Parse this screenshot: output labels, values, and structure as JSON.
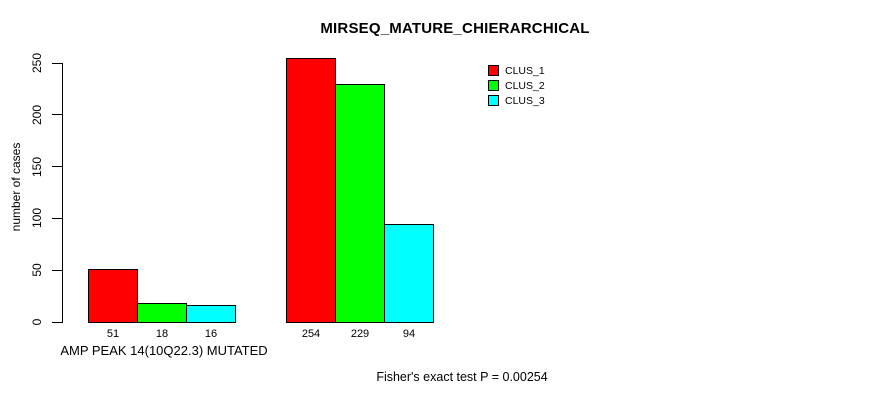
{
  "chart_data": {
    "type": "bar",
    "title": "MIRSEQ_MATURE_CHIERARCHICAL",
    "ylabel": "number of cases",
    "xlabel": "AMP PEAK 14(10Q22.3) MUTATED",
    "annotation": "Fisher's exact test P = 0.00254",
    "categories": [
      "AMP PEAK 14(10Q22.3) MUTATED",
      ""
    ],
    "series": [
      {
        "name": "CLUS_1",
        "color": "#FF0000",
        "values": [
          51,
          254
        ]
      },
      {
        "name": "CLUS_2",
        "color": "#00FF00",
        "values": [
          18,
          229
        ]
      },
      {
        "name": "CLUS_3",
        "color": "#00FFFF",
        "values": [
          16,
          94
        ]
      }
    ],
    "yticks": [
      0,
      50,
      100,
      150,
      200,
      250
    ],
    "ylim": [
      0,
      255
    ],
    "bar_value_labels_shown": true,
    "legend_position": "top-right",
    "grid": false,
    "axis_color": "#000000",
    "background_color": "#FFFFFF"
  }
}
